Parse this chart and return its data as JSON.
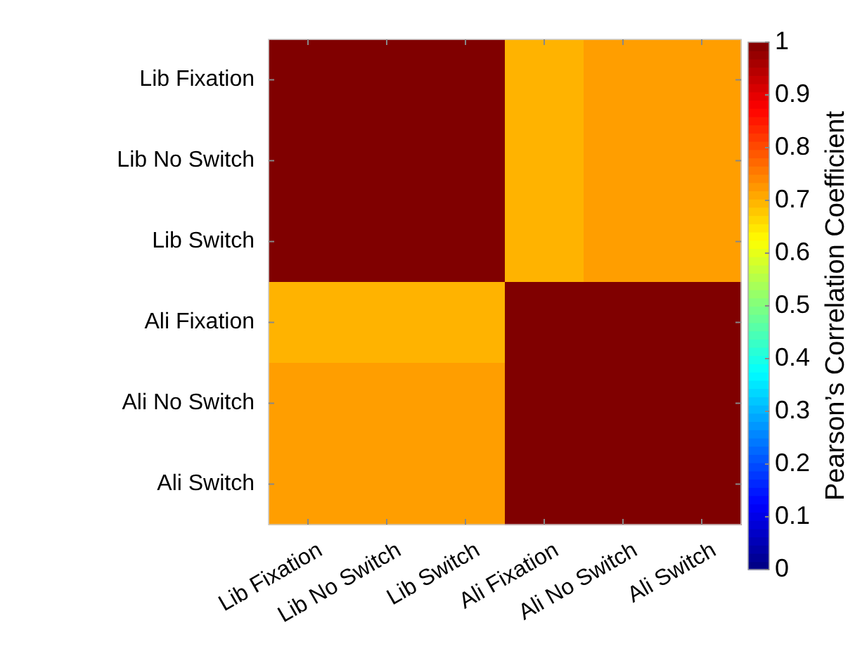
{
  "chart_data": {
    "type": "heatmap",
    "clabel": "Pearson’s Correlation Coefficient",
    "categories": [
      "Lib Fixation",
      "Lib No Switch",
      "Lib Switch",
      "Ali Fixation",
      "Ali No Switch",
      "Ali Switch"
    ],
    "y_categories": [
      "Lib Fixation",
      "Lib No Switch",
      "Lib Switch",
      "Ali Fixation",
      "Ali No Switch",
      "Ali Switch"
    ],
    "cells": [
      [
        1,
        1,
        1,
        0.7,
        0.72,
        0.72
      ],
      [
        1,
        1,
        1,
        0.7,
        0.72,
        0.72
      ],
      [
        1,
        1,
        1,
        0.7,
        0.72,
        0.72
      ],
      [
        0.7,
        0.7,
        0.7,
        1,
        1,
        1
      ],
      [
        0.72,
        0.72,
        0.72,
        1,
        1,
        1
      ],
      [
        0.72,
        0.72,
        0.72,
        1,
        1,
        1
      ]
    ],
    "clim": [
      0,
      1
    ],
    "cticks": [
      0,
      0.1,
      0.2,
      0.3,
      0.4,
      0.5,
      0.6,
      0.7,
      0.8,
      0.9,
      1
    ]
  }
}
